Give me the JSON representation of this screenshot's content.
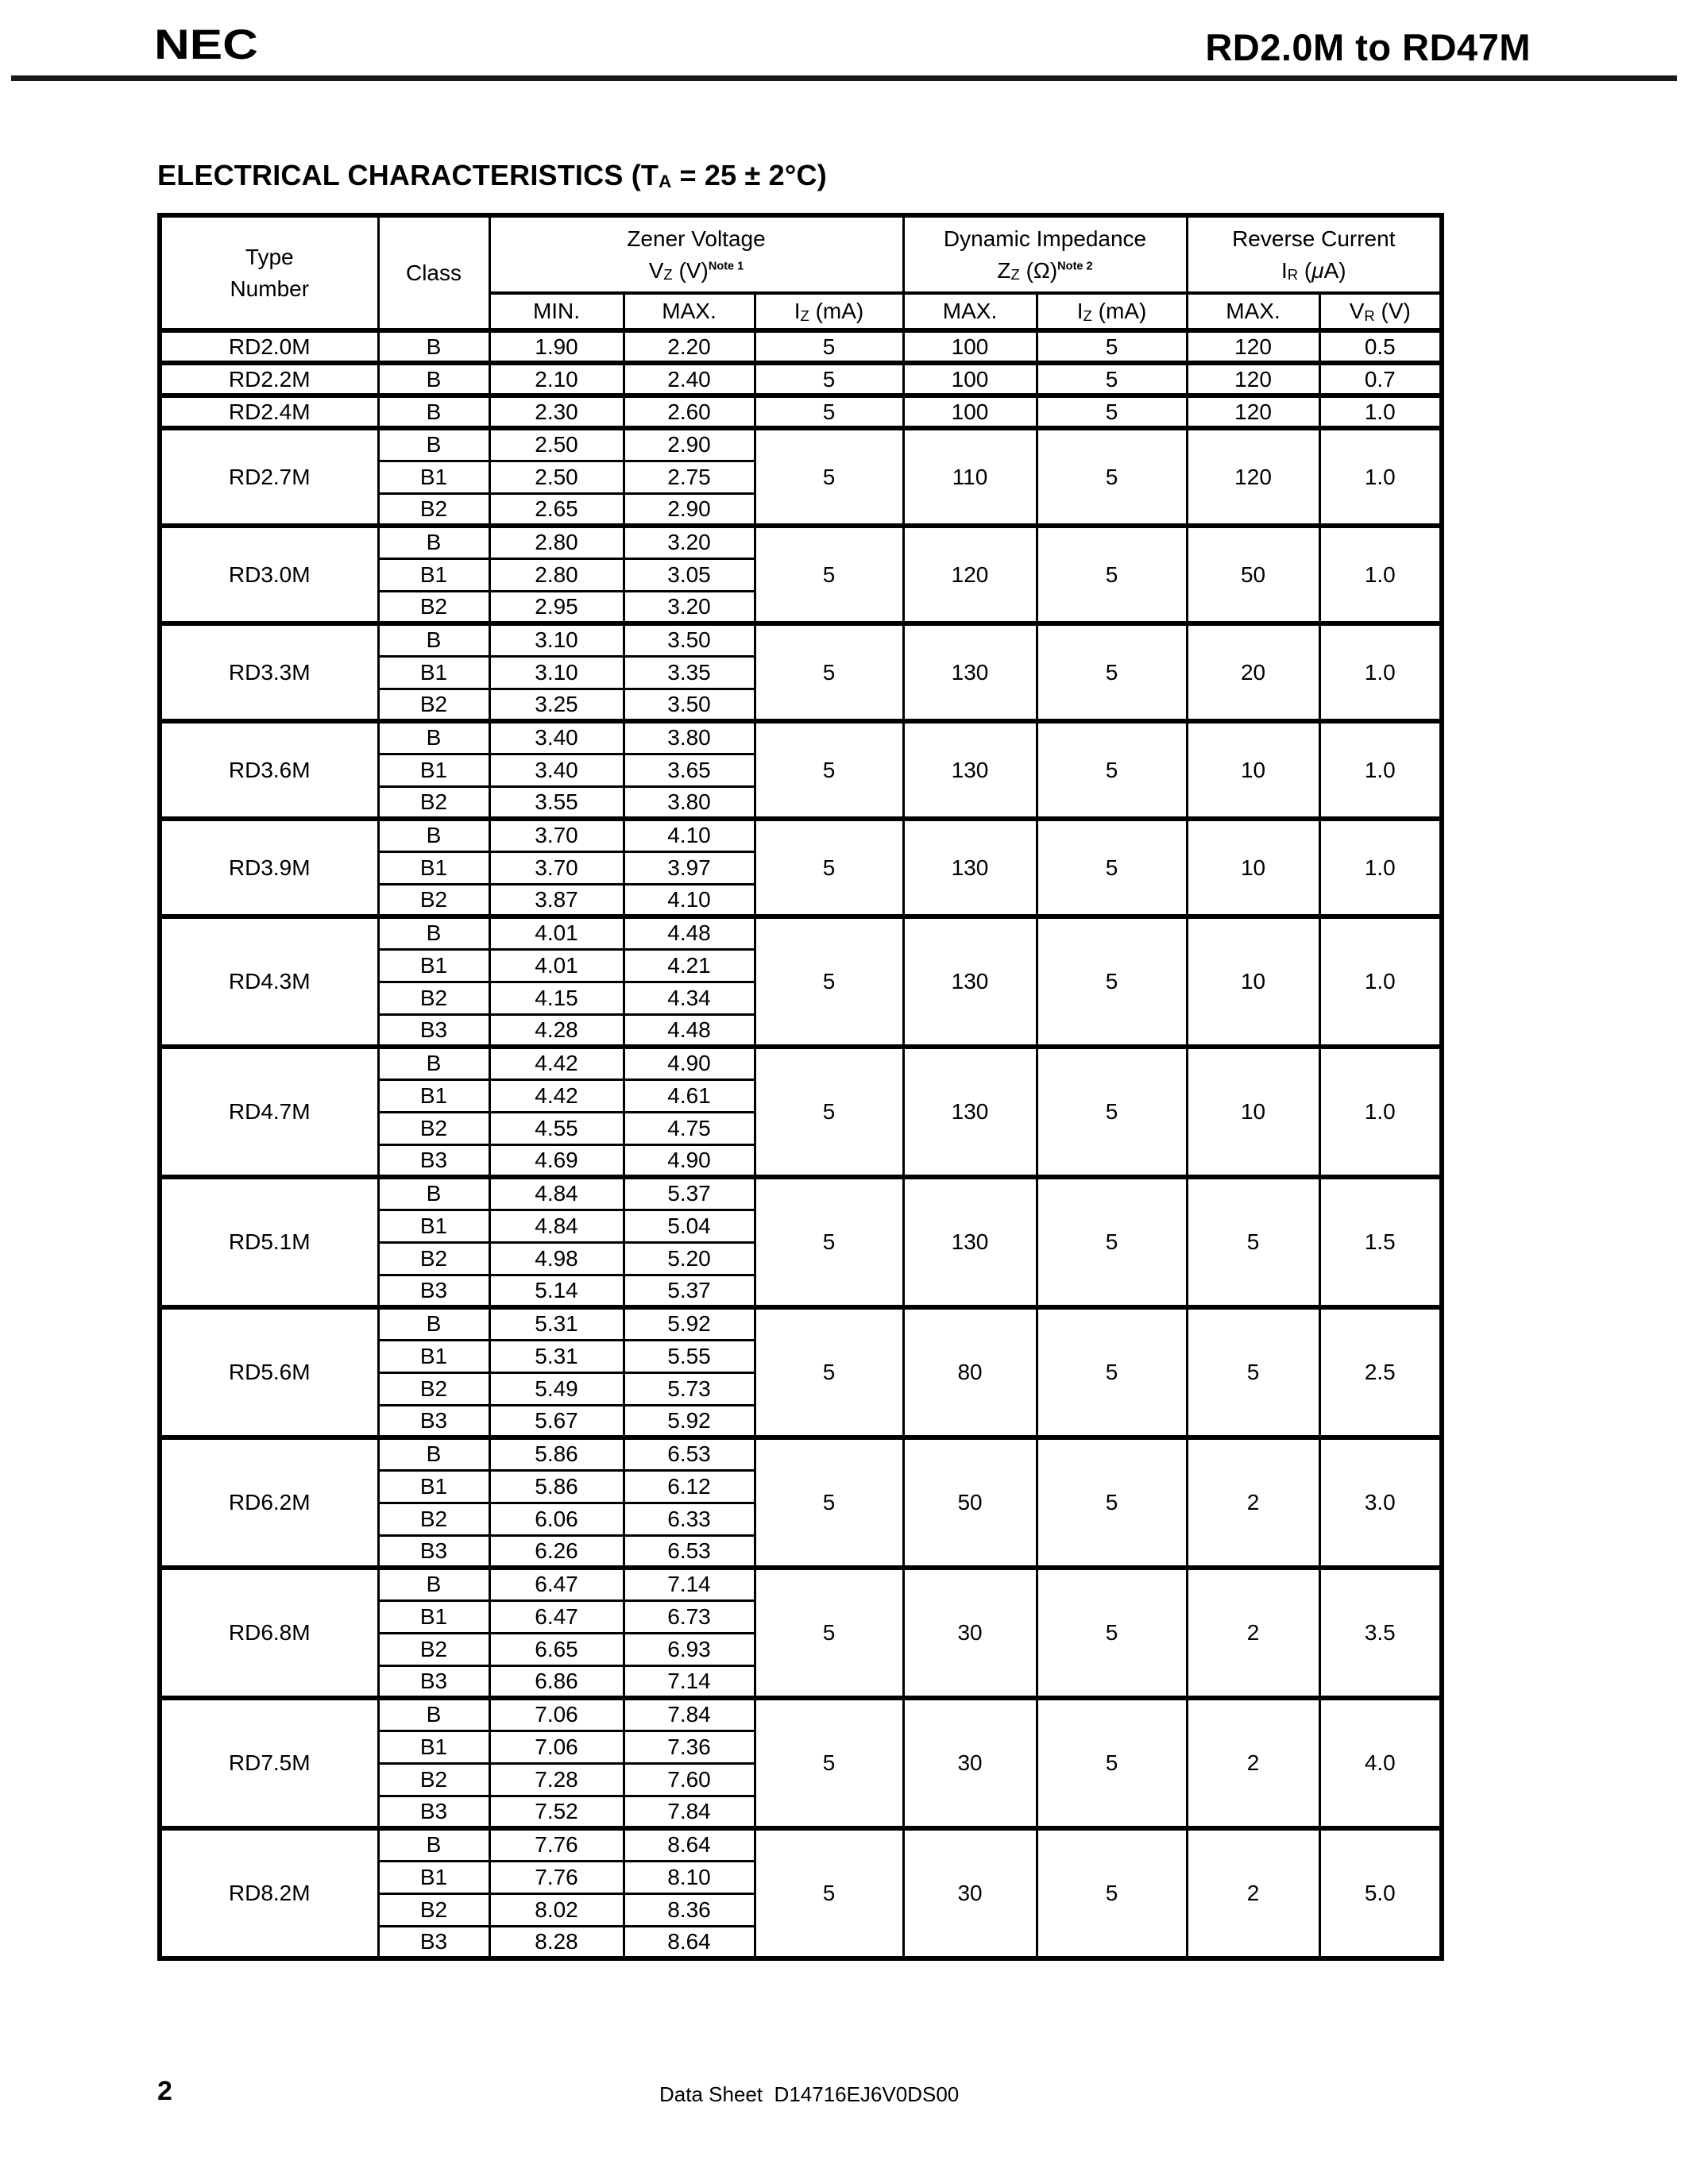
{
  "header": {
    "logo_text": "NEC",
    "doc_title": "RD2.0M to RD47M"
  },
  "section": {
    "title_pre": "ELECTRICAL CHARACTERISTICS (T",
    "title_sub": "A",
    "title_post": " = 25 ± 2°C)"
  },
  "table": {
    "headers": {
      "type_line1": "Type",
      "type_line2": "Number",
      "class_label": "Class",
      "zener": {
        "title": "Zener Voltage",
        "sym": "V",
        "sym_sub": "Z",
        "unit": " (V)",
        "note": "Note 1"
      },
      "impedance": {
        "title": "Dynamic Impedance",
        "sym": "Z",
        "sym_sub": "Z",
        "unit": " (Ω)",
        "note": "Note 2"
      },
      "reverse": {
        "title": "Reverse Current",
        "sym": "I",
        "sym_sub": "R",
        "paren_open": " (",
        "mu": "μ",
        "paren_close": "A)"
      },
      "sub": {
        "min": "MIN.",
        "max": "MAX.",
        "iz_base": "I",
        "iz_sub": "Z",
        "iz_unit": " (mA)",
        "max2": "MAX.",
        "max3": "MAX.",
        "vr_base": "V",
        "vr_sub": "R",
        "vr_unit": " (V)"
      }
    },
    "groups": [
      {
        "type": "RD2.0M",
        "classes": [
          {
            "cls": "B",
            "min": "1.90",
            "max": "2.20"
          }
        ],
        "iz_zener": "5",
        "zz_max": "100",
        "iz_impedance": "5",
        "ir_max": "120",
        "vr": "0.5"
      },
      {
        "type": "RD2.2M",
        "classes": [
          {
            "cls": "B",
            "min": "2.10",
            "max": "2.40"
          }
        ],
        "iz_zener": "5",
        "zz_max": "100",
        "iz_impedance": "5",
        "ir_max": "120",
        "vr": "0.7"
      },
      {
        "type": "RD2.4M",
        "classes": [
          {
            "cls": "B",
            "min": "2.30",
            "max": "2.60"
          }
        ],
        "iz_zener": "5",
        "zz_max": "100",
        "iz_impedance": "5",
        "ir_max": "120",
        "vr": "1.0"
      },
      {
        "type": "RD2.7M",
        "classes": [
          {
            "cls": "B",
            "min": "2.50",
            "max": "2.90"
          },
          {
            "cls": "B1",
            "min": "2.50",
            "max": "2.75"
          },
          {
            "cls": "B2",
            "min": "2.65",
            "max": "2.90"
          }
        ],
        "iz_zener": "5",
        "zz_max": "110",
        "iz_impedance": "5",
        "ir_max": "120",
        "vr": "1.0"
      },
      {
        "type": "RD3.0M",
        "classes": [
          {
            "cls": "B",
            "min": "2.80",
            "max": "3.20"
          },
          {
            "cls": "B1",
            "min": "2.80",
            "max": "3.05"
          },
          {
            "cls": "B2",
            "min": "2.95",
            "max": "3.20"
          }
        ],
        "iz_zener": "5",
        "zz_max": "120",
        "iz_impedance": "5",
        "ir_max": "50",
        "vr": "1.0"
      },
      {
        "type": "RD3.3M",
        "classes": [
          {
            "cls": "B",
            "min": "3.10",
            "max": "3.50"
          },
          {
            "cls": "B1",
            "min": "3.10",
            "max": "3.35"
          },
          {
            "cls": "B2",
            "min": "3.25",
            "max": "3.50"
          }
        ],
        "iz_zener": "5",
        "zz_max": "130",
        "iz_impedance": "5",
        "ir_max": "20",
        "vr": "1.0"
      },
      {
        "type": "RD3.6M",
        "classes": [
          {
            "cls": "B",
            "min": "3.40",
            "max": "3.80"
          },
          {
            "cls": "B1",
            "min": "3.40",
            "max": "3.65"
          },
          {
            "cls": "B2",
            "min": "3.55",
            "max": "3.80"
          }
        ],
        "iz_zener": "5",
        "zz_max": "130",
        "iz_impedance": "5",
        "ir_max": "10",
        "vr": "1.0"
      },
      {
        "type": "RD3.9M",
        "classes": [
          {
            "cls": "B",
            "min": "3.70",
            "max": "4.10"
          },
          {
            "cls": "B1",
            "min": "3.70",
            "max": "3.97"
          },
          {
            "cls": "B2",
            "min": "3.87",
            "max": "4.10"
          }
        ],
        "iz_zener": "5",
        "zz_max": "130",
        "iz_impedance": "5",
        "ir_max": "10",
        "vr": "1.0"
      },
      {
        "type": "RD4.3M",
        "classes": [
          {
            "cls": "B",
            "min": "4.01",
            "max": "4.48"
          },
          {
            "cls": "B1",
            "min": "4.01",
            "max": "4.21"
          },
          {
            "cls": "B2",
            "min": "4.15",
            "max": "4.34"
          },
          {
            "cls": "B3",
            "min": "4.28",
            "max": "4.48"
          }
        ],
        "iz_zener": "5",
        "zz_max": "130",
        "iz_impedance": "5",
        "ir_max": "10",
        "vr": "1.0"
      },
      {
        "type": "RD4.7M",
        "classes": [
          {
            "cls": "B",
            "min": "4.42",
            "max": "4.90"
          },
          {
            "cls": "B1",
            "min": "4.42",
            "max": "4.61"
          },
          {
            "cls": "B2",
            "min": "4.55",
            "max": "4.75"
          },
          {
            "cls": "B3",
            "min": "4.69",
            "max": "4.90"
          }
        ],
        "iz_zener": "5",
        "zz_max": "130",
        "iz_impedance": "5",
        "ir_max": "10",
        "vr": "1.0"
      },
      {
        "type": "RD5.1M",
        "classes": [
          {
            "cls": "B",
            "min": "4.84",
            "max": "5.37"
          },
          {
            "cls": "B1",
            "min": "4.84",
            "max": "5.04"
          },
          {
            "cls": "B2",
            "min": "4.98",
            "max": "5.20"
          },
          {
            "cls": "B3",
            "min": "5.14",
            "max": "5.37"
          }
        ],
        "iz_zener": "5",
        "zz_max": "130",
        "iz_impedance": "5",
        "ir_max": "5",
        "vr": "1.5"
      },
      {
        "type": "RD5.6M",
        "classes": [
          {
            "cls": "B",
            "min": "5.31",
            "max": "5.92"
          },
          {
            "cls": "B1",
            "min": "5.31",
            "max": "5.55"
          },
          {
            "cls": "B2",
            "min": "5.49",
            "max": "5.73"
          },
          {
            "cls": "B3",
            "min": "5.67",
            "max": "5.92"
          }
        ],
        "iz_zener": "5",
        "zz_max": "80",
        "iz_impedance": "5",
        "ir_max": "5",
        "vr": "2.5"
      },
      {
        "type": "RD6.2M",
        "classes": [
          {
            "cls": "B",
            "min": "5.86",
            "max": "6.53"
          },
          {
            "cls": "B1",
            "min": "5.86",
            "max": "6.12"
          },
          {
            "cls": "B2",
            "min": "6.06",
            "max": "6.33"
          },
          {
            "cls": "B3",
            "min": "6.26",
            "max": "6.53"
          }
        ],
        "iz_zener": "5",
        "zz_max": "50",
        "iz_impedance": "5",
        "ir_max": "2",
        "vr": "3.0"
      },
      {
        "type": "RD6.8M",
        "classes": [
          {
            "cls": "B",
            "min": "6.47",
            "max": "7.14"
          },
          {
            "cls": "B1",
            "min": "6.47",
            "max": "6.73"
          },
          {
            "cls": "B2",
            "min": "6.65",
            "max": "6.93"
          },
          {
            "cls": "B3",
            "min": "6.86",
            "max": "7.14"
          }
        ],
        "iz_zener": "5",
        "zz_max": "30",
        "iz_impedance": "5",
        "ir_max": "2",
        "vr": "3.5"
      },
      {
        "type": "RD7.5M",
        "classes": [
          {
            "cls": "B",
            "min": "7.06",
            "max": "7.84"
          },
          {
            "cls": "B1",
            "min": "7.06",
            "max": "7.36"
          },
          {
            "cls": "B2",
            "min": "7.28",
            "max": "7.60"
          },
          {
            "cls": "B3",
            "min": "7.52",
            "max": "7.84"
          }
        ],
        "iz_zener": "5",
        "zz_max": "30",
        "iz_impedance": "5",
        "ir_max": "2",
        "vr": "4.0"
      },
      {
        "type": "RD8.2M",
        "classes": [
          {
            "cls": "B",
            "min": "7.76",
            "max": "8.64"
          },
          {
            "cls": "B1",
            "min": "7.76",
            "max": "8.10"
          },
          {
            "cls": "B2",
            "min": "8.02",
            "max": "8.36"
          },
          {
            "cls": "B3",
            "min": "8.28",
            "max": "8.64"
          }
        ],
        "iz_zener": "5",
        "zz_max": "30",
        "iz_impedance": "5",
        "ir_max": "2",
        "vr": "5.0"
      }
    ]
  },
  "footer": {
    "page_number": "2",
    "doc_ref": "Data Sheet  D14716EJ6V0DS00"
  }
}
